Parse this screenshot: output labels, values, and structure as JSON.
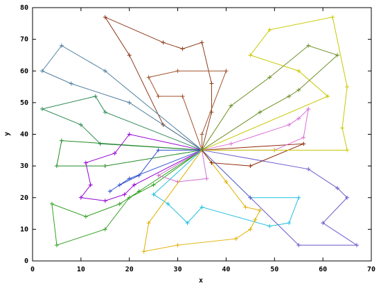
{
  "chart_data": {
    "type": "line",
    "marker": "+",
    "x_label": "x",
    "y_label": "y",
    "xlim": [
      0,
      70
    ],
    "ylim": [
      0,
      80
    ],
    "xticks": [
      0,
      10,
      20,
      30,
      40,
      50,
      60,
      70
    ],
    "yticks": [
      0,
      10,
      20,
      30,
      40,
      50,
      60,
      70,
      80
    ],
    "series": [
      {
        "color": "#8b3a1a",
        "x": [
          35,
          27,
          20,
          15,
          27,
          31,
          35,
          37,
          37,
          35
        ],
        "values": [
          35,
          43,
          65,
          77,
          69,
          67,
          69,
          56,
          47,
          35
        ]
      },
      {
        "color": "#a0522d",
        "x": [
          35,
          31,
          26,
          24,
          30,
          40,
          35,
          35
        ],
        "values": [
          35,
          52,
          52,
          58,
          60,
          60,
          40,
          35
        ]
      },
      {
        "color": "#4f7f9f",
        "x": [
          35,
          15,
          6,
          2,
          8,
          20,
          35
        ],
        "values": [
          35,
          60,
          68,
          60,
          56,
          50,
          35
        ]
      },
      {
        "color": "#2e8b57",
        "x": [
          35,
          15,
          13,
          2,
          10,
          14,
          35
        ],
        "values": [
          35,
          47,
          52,
          48,
          43,
          37,
          35
        ]
      },
      {
        "color": "#228b22",
        "x": [
          35,
          6,
          5,
          15,
          35
        ],
        "values": [
          35,
          38,
          30,
          30,
          35
        ]
      },
      {
        "color": "#9400d3",
        "x": [
          35,
          20,
          17,
          11,
          12,
          10,
          15,
          19,
          21,
          35
        ],
        "values": [
          35,
          40,
          34,
          31,
          24,
          20,
          19,
          21,
          24,
          35
        ]
      },
      {
        "color": "#3050d0",
        "x": [
          35,
          26,
          22,
          18,
          16,
          20,
          35
        ],
        "values": [
          35,
          35,
          27,
          24,
          22,
          26,
          35
        ]
      },
      {
        "color": "#30a020",
        "x": [
          35,
          22,
          18,
          11,
          4,
          5,
          15,
          20,
          25,
          35
        ],
        "values": [
          35,
          22,
          18,
          14,
          18,
          5,
          10,
          20,
          24,
          35
        ]
      },
      {
        "color": "#20c0e0",
        "x": [
          35,
          25,
          28,
          32,
          35,
          49,
          53,
          55,
          45,
          35
        ],
        "values": [
          35,
          21,
          18,
          12,
          17,
          11,
          12,
          20,
          20,
          35
        ]
      },
      {
        "color": "#d070d0",
        "x": [
          35,
          26,
          30,
          36,
          35
        ],
        "values": [
          35,
          27,
          25,
          26,
          35
        ]
      },
      {
        "color": "#e0b000",
        "x": [
          35,
          24,
          23,
          30,
          42,
          45,
          46,
          47,
          44,
          40,
          35
        ],
        "values": [
          35,
          12,
          3,
          5,
          7,
          10,
          13,
          16,
          17,
          25,
          35
        ]
      },
      {
        "color": "#6a5acd",
        "x": [
          35,
          57,
          63,
          65,
          60,
          67,
          55,
          45,
          35
        ],
        "values": [
          35,
          29,
          23,
          20,
          12,
          5,
          5,
          20,
          35
        ]
      },
      {
        "color": "#8b2500",
        "x": [
          35,
          37,
          45,
          56,
          35
        ],
        "values": [
          35,
          31,
          30,
          37,
          35
        ]
      },
      {
        "color": "#da70d6",
        "x": [
          35,
          50,
          56,
          57,
          55,
          53,
          41,
          35
        ],
        "values": [
          35,
          35,
          39,
          48,
          45,
          43,
          37,
          35
        ]
      },
      {
        "color": "#c8c800",
        "x": [
          35,
          61,
          55,
          45,
          49,
          62,
          65,
          64,
          65,
          50,
          35
        ],
        "values": [
          35,
          52,
          60,
          65,
          73,
          77,
          55,
          42,
          35,
          35,
          35
        ]
      },
      {
        "color": "#6b8e23",
        "x": [
          35,
          41,
          49,
          57,
          63,
          55,
          53,
          47,
          35
        ],
        "values": [
          35,
          49,
          58,
          68,
          65,
          54,
          52,
          47,
          35
        ]
      }
    ]
  }
}
